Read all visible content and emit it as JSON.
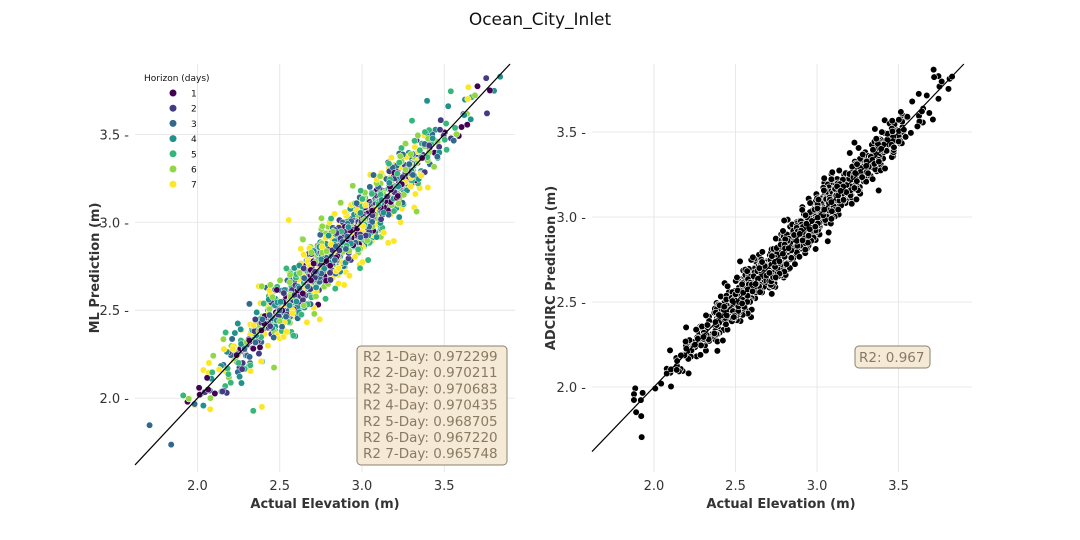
{
  "title": "Ocean_City_Inlet",
  "chart_data": [
    {
      "type": "scatter",
      "xlabel": "Actual Elevation (m)",
      "ylabel": "ML Prediction (m)",
      "xlim": [
        1.62,
        3.93
      ],
      "ylim": [
        1.58,
        3.9
      ],
      "xticks": [
        "2.0",
        "2.5",
        "3.0",
        "3.5"
      ],
      "yticks": [
        "2.0",
        "2.5",
        "3.0",
        "3.5"
      ],
      "grid": true,
      "reference_line": "y = x",
      "legend": {
        "title": "Horizon (days)",
        "placement": "top-left",
        "labels": [
          "1",
          "2",
          "3",
          "4",
          "5",
          "6",
          "7"
        ],
        "colors": [
          "#440154",
          "#443983",
          "#31688e",
          "#21918c",
          "#35b779",
          "#90d743",
          "#fde725"
        ]
      },
      "x_range_of_points": [
        1.7,
        3.85
      ],
      "r2_box": [
        "R2 1-Day: 0.972299",
        "R2 2-Day: 0.970211",
        "R2 3-Day: 0.970683",
        "R2 4-Day: 0.970435",
        "R2 5-Day: 0.968705",
        "R2 6-Day: 0.967220",
        "R2 7-Day: 0.965748"
      ]
    },
    {
      "type": "scatter",
      "xlabel": "Actual Elevation (m)",
      "ylabel": "ADCIRC Prediction (m)",
      "xlim": [
        1.62,
        3.95
      ],
      "ylim": [
        1.5,
        3.9
      ],
      "xticks": [
        "2.0",
        "2.5",
        "3.0",
        "3.5"
      ],
      "yticks": [
        "2.0",
        "2.5",
        "3.0",
        "3.5"
      ],
      "grid": true,
      "reference_line": "y = x",
      "point_color": "#000000",
      "x_range_of_points": [
        1.7,
        3.85
      ],
      "r2_box": [
        "R2: 0.967"
      ]
    }
  ]
}
